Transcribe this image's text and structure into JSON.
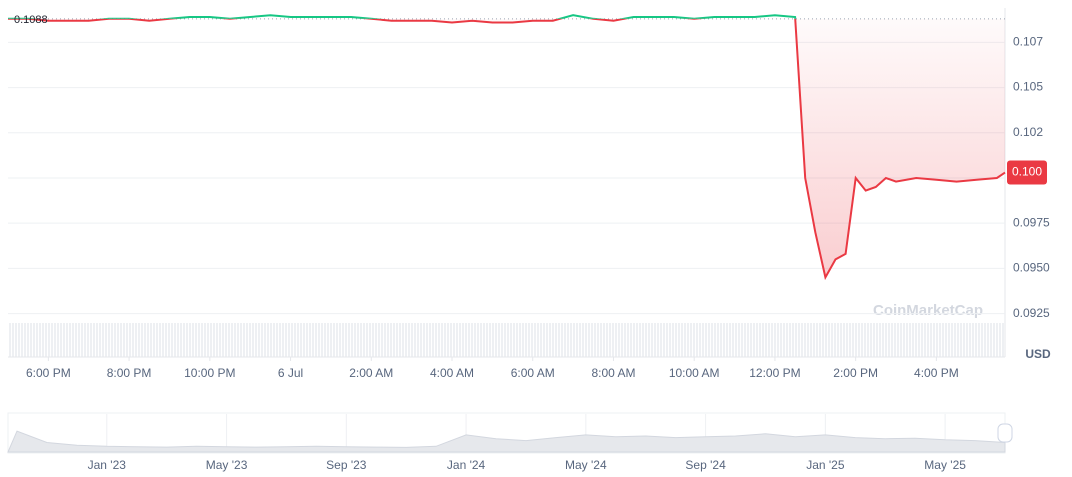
{
  "chart_data": {
    "type": "line",
    "xlim": [
      17,
      41.7
    ],
    "ylim": [
      0.0901,
      0.1094
    ],
    "x": [
      17,
      17.5,
      18,
      18.5,
      19,
      19.5,
      20,
      20.5,
      21,
      21.5,
      22,
      22.5,
      23,
      23.5,
      24,
      24.5,
      25,
      25.5,
      26,
      26.5,
      27,
      27.5,
      28,
      28.5,
      29,
      29.5,
      30,
      30.5,
      31,
      31.5,
      32,
      32.5,
      33,
      33.5,
      34,
      34.5,
      35,
      35.5,
      36,
      36.5,
      36.75,
      37,
      37.25,
      37.5,
      37.75,
      38,
      38.25,
      38.5,
      38.75,
      39,
      39.5,
      40,
      40.5,
      41,
      41.5,
      41.7
    ],
    "series": [
      {
        "color_up": "#16c784",
        "color_down": "#ea3943",
        "values": [
          0.1088,
          0.1088,
          0.1087,
          0.1087,
          0.1087,
          0.1088,
          0.1088,
          0.1087,
          0.1088,
          0.1089,
          0.1089,
          0.1088,
          0.1089,
          0.109,
          0.1089,
          0.1089,
          0.1089,
          0.1089,
          0.1088,
          0.1087,
          0.1087,
          0.1087,
          0.1086,
          0.1087,
          0.1086,
          0.1086,
          0.1087,
          0.1087,
          0.109,
          0.1088,
          0.1087,
          0.1089,
          0.1089,
          0.1089,
          0.1088,
          0.1089,
          0.1089,
          0.1089,
          0.109,
          0.1089,
          0.1,
          0.097,
          0.0945,
          0.0955,
          0.0958,
          0.1,
          0.0993,
          0.0995,
          0.1,
          0.0998,
          0.1,
          0.0999,
          0.0998,
          0.0999,
          0.1,
          0.1003
        ]
      }
    ],
    "baseline": 0.1088,
    "last_value_label": "0.100",
    "yticks": [
      {
        "value": 0.1075,
        "label": "0.107"
      },
      0.105,
      {
        "value": 0.1025,
        "label": "0.102"
      },
      0.1,
      0.0975,
      {
        "value": 0.095,
        "label": "0.0950"
      },
      0.0925
    ],
    "xticks": [
      {
        "value": 18,
        "label": "6:00 PM"
      },
      {
        "value": 20,
        "label": "8:00 PM"
      },
      {
        "value": 22,
        "label": "10:00 PM"
      },
      {
        "value": 24,
        "label": "6 Jul"
      },
      {
        "value": 26,
        "label": "2:00 AM"
      },
      {
        "value": 28,
        "label": "4:00 AM"
      },
      {
        "value": 30,
        "label": "6:00 AM"
      },
      {
        "value": 32,
        "label": "8:00 AM"
      },
      {
        "value": 34,
        "label": "10:00 AM"
      },
      {
        "value": 36,
        "label": "12:00 PM"
      },
      {
        "value": 38,
        "label": "2:00 PM"
      },
      {
        "value": 40,
        "label": "4:00 PM"
      }
    ],
    "grid": true,
    "unit_label": "USD",
    "watermark": "CoinMarketCap",
    "navigator": {
      "type": "area",
      "xlim": [
        -3.3,
        30
      ],
      "ylim": [
        0,
        100
      ],
      "x": [
        -3,
        -2,
        -1,
        0,
        1,
        2,
        3,
        4,
        5,
        6,
        7,
        8,
        9,
        10,
        11,
        12,
        13,
        14,
        15,
        16,
        17,
        18,
        19,
        20,
        21,
        22,
        23,
        24,
        25,
        26,
        27,
        28,
        29,
        30
      ],
      "values": [
        55,
        25,
        18,
        15,
        14,
        13,
        15,
        14,
        13,
        14,
        15,
        14,
        13,
        12,
        15,
        45,
        35,
        30,
        38,
        45,
        40,
        42,
        38,
        40,
        42,
        48,
        40,
        45,
        38,
        35,
        36,
        32,
        30,
        25
      ],
      "xticks": [
        {
          "value": 0,
          "label": "Jan '23"
        },
        {
          "value": 4,
          "label": "May '23"
        },
        {
          "value": 8,
          "label": "Sep '23"
        },
        {
          "value": 12,
          "label": "Jan '24"
        },
        {
          "value": 16,
          "label": "May '24"
        },
        {
          "value": 20,
          "label": "Sep '24"
        },
        {
          "value": 24,
          "label": "Jan '25"
        },
        {
          "value": 28,
          "label": "May '25"
        }
      ]
    }
  }
}
